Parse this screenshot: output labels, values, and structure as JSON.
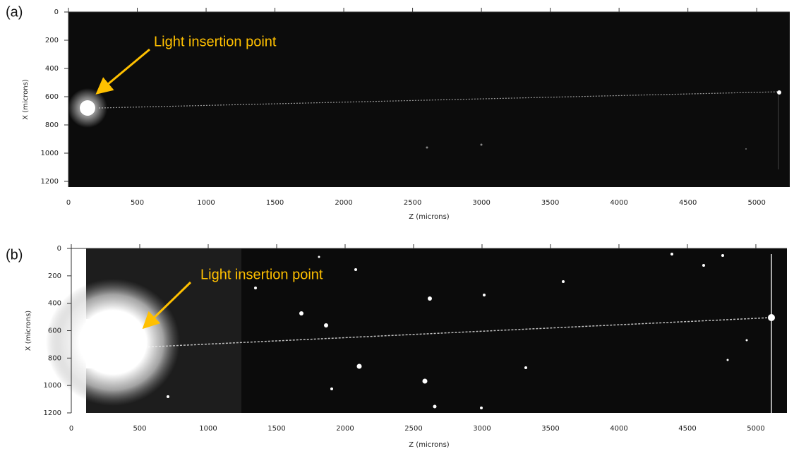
{
  "chart_data": [
    {
      "type": "image",
      "panel_label": "(a)",
      "annotation": "Light insertion point",
      "xlabel": "Z (microns)",
      "ylabel": "X (microns)",
      "y_inverted": true,
      "xlim": [
        0,
        5240
      ],
      "ylim": [
        0,
        1240
      ],
      "xticks": [
        0,
        500,
        1000,
        1500,
        2000,
        2500,
        3000,
        3500,
        4000,
        4500,
        5000
      ],
      "yticks": [
        0,
        200,
        400,
        600,
        800,
        1000,
        1200
      ]
    },
    {
      "type": "image",
      "panel_label": "(b)",
      "annotation": "Light insertion point",
      "xlabel": "Z (microns)",
      "ylabel": "X (microns)",
      "y_inverted": true,
      "xlim": [
        0,
        5227
      ],
      "ylim": [
        0,
        1200
      ],
      "xticks": [
        0,
        500,
        1000,
        1500,
        2000,
        2500,
        3000,
        3500,
        4000,
        4500,
        5000
      ],
      "yticks": [
        0,
        200,
        400,
        600,
        800,
        1000,
        1200
      ]
    }
  ]
}
